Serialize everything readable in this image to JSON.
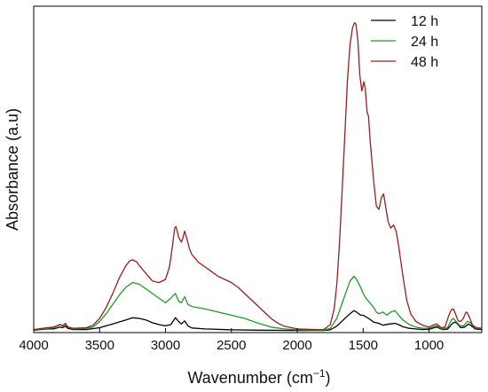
{
  "chart_data": {
    "type": "line",
    "xlabel": "Wavenumber (cm",
    "xlabel_sup": "−1",
    "xlabel_end": ")",
    "ylabel": "Absorbance (a.u)",
    "xlim": [
      4000,
      600
    ],
    "x_reversed": true,
    "ylim": [
      0,
      1.0
    ],
    "y_ticks_shown": false,
    "grid": false,
    "legend_position": "top-right",
    "x_ticks": [
      {
        "value": 4000,
        "label": "4000"
      },
      {
        "value": 3500,
        "label": "3500"
      },
      {
        "value": 3000,
        "label": "3000"
      },
      {
        "value": 2500,
        "label": "2500"
      },
      {
        "value": 2000,
        "label": "2000"
      },
      {
        "value": 1500,
        "label": "1500"
      },
      {
        "value": 1000,
        "label": "1000"
      }
    ],
    "series": [
      {
        "name": "12 h",
        "color": "#000000",
        "points": [
          [
            4000,
            0.002
          ],
          [
            3900,
            0.006
          ],
          [
            3850,
            0.006
          ],
          [
            3800,
            0.012
          ],
          [
            3780,
            0.01
          ],
          [
            3760,
            0.015
          ],
          [
            3740,
            0.008
          ],
          [
            3700,
            0.004
          ],
          [
            3600,
            0.004
          ],
          [
            3500,
            0.01
          ],
          [
            3400,
            0.022
          ],
          [
            3300,
            0.035
          ],
          [
            3250,
            0.042
          ],
          [
            3200,
            0.04
          ],
          [
            3150,
            0.035
          ],
          [
            3100,
            0.026
          ],
          [
            3050,
            0.02
          ],
          [
            3000,
            0.016
          ],
          [
            2960,
            0.02
          ],
          [
            2925,
            0.042
          ],
          [
            2900,
            0.03
          ],
          [
            2880,
            0.022
          ],
          [
            2855,
            0.032
          ],
          [
            2830,
            0.016
          ],
          [
            2800,
            0.009
          ],
          [
            2700,
            0.006
          ],
          [
            2500,
            0.003
          ],
          [
            2300,
            0.002
          ],
          [
            2000,
            0.001
          ],
          [
            1800,
            0.001
          ],
          [
            1750,
            0.003
          ],
          [
            1700,
            0.015
          ],
          [
            1650,
            0.035
          ],
          [
            1600,
            0.055
          ],
          [
            1570,
            0.065
          ],
          [
            1550,
            0.06
          ],
          [
            1520,
            0.05
          ],
          [
            1500,
            0.05
          ],
          [
            1460,
            0.04
          ],
          [
            1420,
            0.028
          ],
          [
            1380,
            0.024
          ],
          [
            1350,
            0.018
          ],
          [
            1300,
            0.022
          ],
          [
            1260,
            0.024
          ],
          [
            1230,
            0.02
          ],
          [
            1200,
            0.013
          ],
          [
            1150,
            0.008
          ],
          [
            1100,
            0.006
          ],
          [
            1050,
            0.004
          ],
          [
            1000,
            0.005
          ],
          [
            960,
            0.01
          ],
          [
            940,
            0.012
          ],
          [
            900,
            0.004
          ],
          [
            860,
            0.005
          ],
          [
            820,
            0.025
          ],
          [
            800,
            0.028
          ],
          [
            780,
            0.02
          ],
          [
            760,
            0.01
          ],
          [
            730,
            0.012
          ],
          [
            700,
            0.022
          ],
          [
            680,
            0.016
          ],
          [
            650,
            0.006
          ],
          [
            600,
            0.004
          ]
        ]
      },
      {
        "name": "24 h",
        "color": "#22992a",
        "points": [
          [
            4000,
            0.003
          ],
          [
            3900,
            0.008
          ],
          [
            3850,
            0.01
          ],
          [
            3800,
            0.02
          ],
          [
            3780,
            0.015
          ],
          [
            3760,
            0.022
          ],
          [
            3740,
            0.012
          ],
          [
            3700,
            0.006
          ],
          [
            3600,
            0.008
          ],
          [
            3550,
            0.012
          ],
          [
            3500,
            0.03
          ],
          [
            3450,
            0.055
          ],
          [
            3400,
            0.085
          ],
          [
            3350,
            0.115
          ],
          [
            3300,
            0.14
          ],
          [
            3250,
            0.155
          ],
          [
            3200,
            0.15
          ],
          [
            3150,
            0.135
          ],
          [
            3100,
            0.12
          ],
          [
            3050,
            0.105
          ],
          [
            3000,
            0.09
          ],
          [
            2960,
            0.105
          ],
          [
            2925,
            0.12
          ],
          [
            2900,
            0.095
          ],
          [
            2880,
            0.09
          ],
          [
            2855,
            0.11
          ],
          [
            2830,
            0.085
          ],
          [
            2800,
            0.078
          ],
          [
            2700,
            0.07
          ],
          [
            2600,
            0.06
          ],
          [
            2500,
            0.05
          ],
          [
            2400,
            0.04
          ],
          [
            2300,
            0.025
          ],
          [
            2200,
            0.012
          ],
          [
            2100,
            0.006
          ],
          [
            2000,
            0.003
          ],
          [
            1800,
            0.002
          ],
          [
            1750,
            0.008
          ],
          [
            1700,
            0.04
          ],
          [
            1650,
            0.1
          ],
          [
            1600,
            0.16
          ],
          [
            1570,
            0.175
          ],
          [
            1550,
            0.165
          ],
          [
            1520,
            0.14
          ],
          [
            1500,
            0.12
          ],
          [
            1480,
            0.105
          ],
          [
            1460,
            0.095
          ],
          [
            1420,
            0.075
          ],
          [
            1400,
            0.06
          ],
          [
            1380,
            0.055
          ],
          [
            1350,
            0.06
          ],
          [
            1320,
            0.05
          ],
          [
            1290,
            0.06
          ],
          [
            1260,
            0.065
          ],
          [
            1230,
            0.05
          ],
          [
            1200,
            0.035
          ],
          [
            1150,
            0.02
          ],
          [
            1100,
            0.012
          ],
          [
            1050,
            0.008
          ],
          [
            1000,
            0.008
          ],
          [
            960,
            0.014
          ],
          [
            940,
            0.016
          ],
          [
            900,
            0.006
          ],
          [
            860,
            0.01
          ],
          [
            830,
            0.035
          ],
          [
            815,
            0.04
          ],
          [
            800,
            0.032
          ],
          [
            770,
            0.018
          ],
          [
            740,
            0.015
          ],
          [
            710,
            0.03
          ],
          [
            690,
            0.028
          ],
          [
            660,
            0.012
          ],
          [
            600,
            0.006
          ]
        ]
      },
      {
        "name": "48 h",
        "color": "#a01c1c",
        "points": [
          [
            4000,
            0.004
          ],
          [
            3900,
            0.01
          ],
          [
            3850,
            0.012
          ],
          [
            3800,
            0.02
          ],
          [
            3780,
            0.016
          ],
          [
            3760,
            0.024
          ],
          [
            3740,
            0.012
          ],
          [
            3700,
            0.008
          ],
          [
            3600,
            0.01
          ],
          [
            3550,
            0.018
          ],
          [
            3500,
            0.04
          ],
          [
            3450,
            0.075
          ],
          [
            3400,
            0.12
          ],
          [
            3350,
            0.17
          ],
          [
            3300,
            0.21
          ],
          [
            3270,
            0.225
          ],
          [
            3250,
            0.228
          ],
          [
            3220,
            0.222
          ],
          [
            3200,
            0.21
          ],
          [
            3150,
            0.185
          ],
          [
            3100,
            0.16
          ],
          [
            3050,
            0.155
          ],
          [
            3000,
            0.165
          ],
          [
            2970,
            0.205
          ],
          [
            2950,
            0.265
          ],
          [
            2930,
            0.33
          ],
          [
            2920,
            0.335
          ],
          [
            2900,
            0.3
          ],
          [
            2880,
            0.285
          ],
          [
            2870,
            0.295
          ],
          [
            2855,
            0.32
          ],
          [
            2840,
            0.3
          ],
          [
            2820,
            0.265
          ],
          [
            2800,
            0.245
          ],
          [
            2750,
            0.22
          ],
          [
            2700,
            0.205
          ],
          [
            2650,
            0.19
          ],
          [
            2600,
            0.175
          ],
          [
            2550,
            0.165
          ],
          [
            2500,
            0.155
          ],
          [
            2450,
            0.14
          ],
          [
            2400,
            0.12
          ],
          [
            2350,
            0.1
          ],
          [
            2300,
            0.08
          ],
          [
            2250,
            0.06
          ],
          [
            2200,
            0.04
          ],
          [
            2150,
            0.025
          ],
          [
            2100,
            0.015
          ],
          [
            2000,
            0.006
          ],
          [
            1850,
            0.004
          ],
          [
            1800,
            0.004
          ],
          [
            1750,
            0.02
          ],
          [
            1720,
            0.07
          ],
          [
            1700,
            0.15
          ],
          [
            1680,
            0.28
          ],
          [
            1660,
            0.45
          ],
          [
            1640,
            0.62
          ],
          [
            1620,
            0.8
          ],
          [
            1600,
            0.92
          ],
          [
            1580,
            0.975
          ],
          [
            1565,
            0.99
          ],
          [
            1555,
            0.985
          ],
          [
            1540,
            0.93
          ],
          [
            1525,
            0.82
          ],
          [
            1510,
            0.77
          ],
          [
            1495,
            0.8
          ],
          [
            1485,
            0.78
          ],
          [
            1470,
            0.7
          ],
          [
            1460,
            0.69
          ],
          [
            1445,
            0.6
          ],
          [
            1420,
            0.48
          ],
          [
            1400,
            0.4
          ],
          [
            1380,
            0.39
          ],
          [
            1360,
            0.43
          ],
          [
            1345,
            0.44
          ],
          [
            1330,
            0.4
          ],
          [
            1310,
            0.35
          ],
          [
            1290,
            0.33
          ],
          [
            1270,
            0.34
          ],
          [
            1250,
            0.32
          ],
          [
            1230,
            0.27
          ],
          [
            1200,
            0.18
          ],
          [
            1170,
            0.1
          ],
          [
            1140,
            0.055
          ],
          [
            1100,
            0.03
          ],
          [
            1050,
            0.018
          ],
          [
            1000,
            0.012
          ],
          [
            960,
            0.02
          ],
          [
            940,
            0.022
          ],
          [
            910,
            0.01
          ],
          [
            880,
            0.012
          ],
          [
            850,
            0.05
          ],
          [
            830,
            0.068
          ],
          [
            815,
            0.07
          ],
          [
            800,
            0.055
          ],
          [
            780,
            0.032
          ],
          [
            760,
            0.03
          ],
          [
            740,
            0.04
          ],
          [
            720,
            0.06
          ],
          [
            710,
            0.058
          ],
          [
            690,
            0.04
          ],
          [
            670,
            0.018
          ],
          [
            640,
            0.01
          ],
          [
            600,
            0.008
          ]
        ]
      }
    ]
  }
}
